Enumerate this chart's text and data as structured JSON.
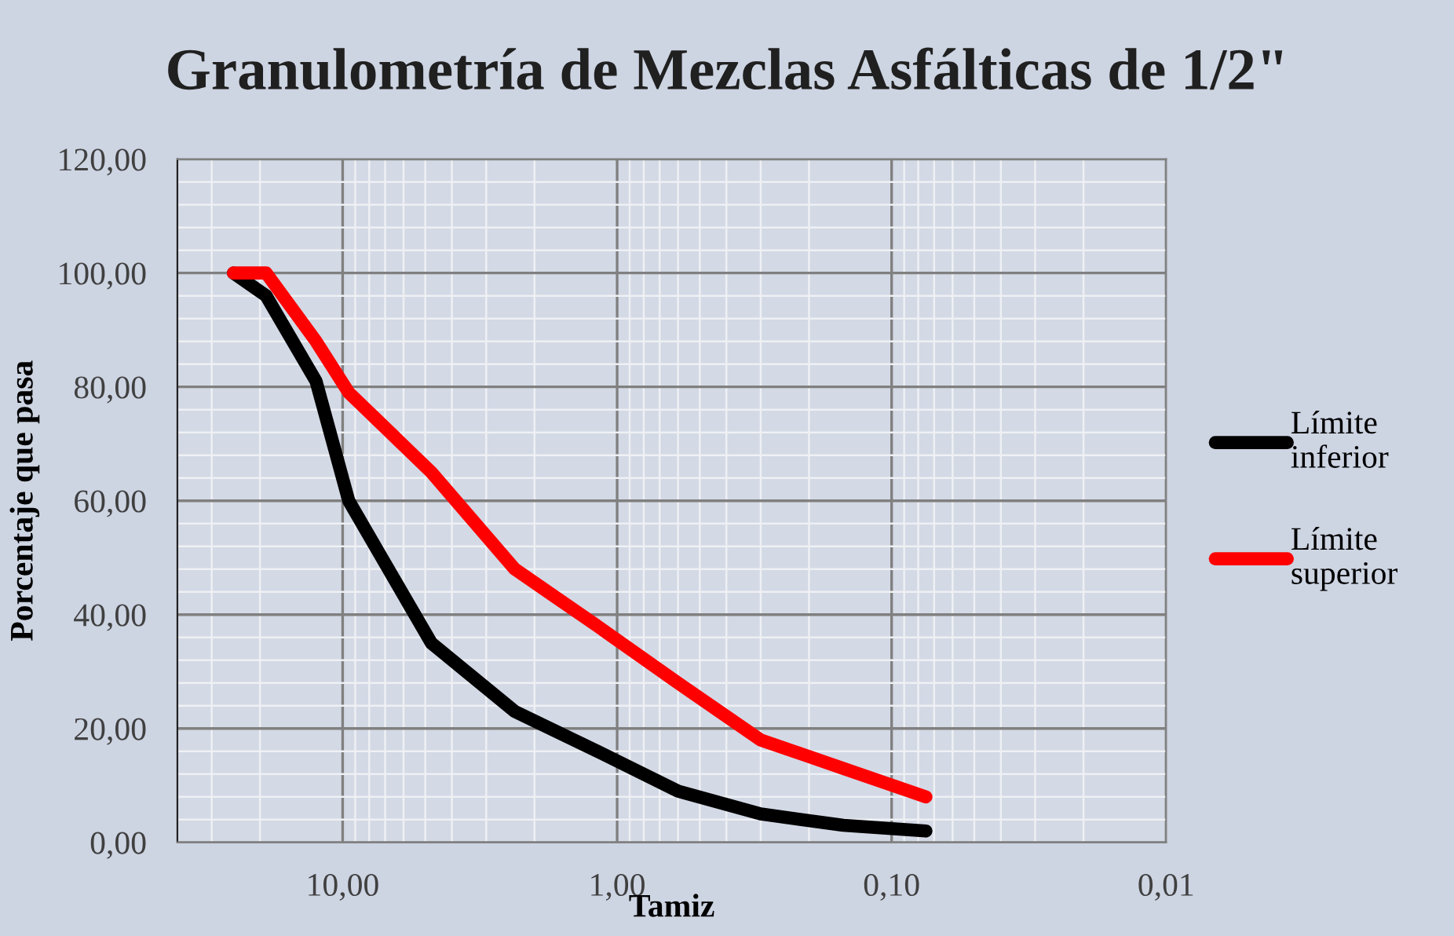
{
  "chart_data": {
    "type": "line",
    "title": "Granulometría de Mezclas Asfálticas de 1/2\"",
    "xlabel": "Tamiz",
    "ylabel": "Porcentaje que pasa",
    "x": [
      25,
      19,
      12.5,
      9.5,
      4.75,
      2.36,
      1.18,
      0.6,
      0.3,
      0.15,
      0.075
    ],
    "series": [
      {
        "name": "Límite inferior",
        "color": "#000000",
        "values": [
          100,
          96,
          81,
          60,
          35,
          23,
          16,
          9,
          5,
          3,
          2
        ]
      },
      {
        "name": "Límite superior",
        "color": "#ff0000",
        "values": [
          100,
          100,
          88,
          79,
          65,
          48,
          38,
          28,
          18,
          13,
          8
        ]
      }
    ],
    "log": "x",
    "xlim": [
      40,
      0.01
    ],
    "xticks": [
      {
        "value": 10,
        "label": "10,00"
      },
      {
        "value": 1,
        "label": "1,00"
      },
      {
        "value": 0.1,
        "label": "0,10"
      },
      {
        "value": 0.01,
        "label": "0,01"
      }
    ],
    "ylim": [
      0,
      120
    ],
    "yticks": [
      {
        "value": 0,
        "label": "0,00"
      },
      {
        "value": 20,
        "label": "20,00"
      },
      {
        "value": 40,
        "label": "40,00"
      },
      {
        "value": 60,
        "label": "60,00"
      },
      {
        "value": 80,
        "label": "80,00"
      },
      {
        "value": 100,
        "label": "100,00"
      },
      {
        "value": 120,
        "label": "120,00"
      }
    ],
    "grid": true,
    "legend": "right",
    "marker": "none",
    "line_style": "solid"
  }
}
